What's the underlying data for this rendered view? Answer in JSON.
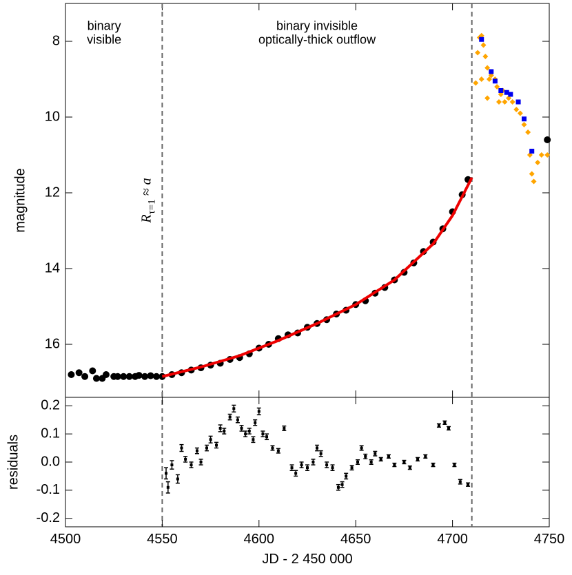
{
  "chart_data": [
    {
      "type": "scatter",
      "y_label": "magnitude",
      "annotations": [
        {
          "x": 4520,
          "y": 7.7,
          "lines": [
            "binary",
            "visible"
          ]
        },
        {
          "x": 4630,
          "y": 7.7,
          "lines": [
            "binary invisible",
            "optically-thick outflow"
          ]
        }
      ],
      "rotated_annotation": {
        "x": 4544,
        "y": 12.2,
        "main": "R",
        "sub": "τ=1",
        "rest": " ≈ a"
      },
      "vlines": [
        4550,
        4710
      ],
      "xlim": [
        4500,
        4750
      ],
      "xticks": [
        4500,
        4550,
        4600,
        4650,
        4700,
        4750
      ],
      "ylim": [
        17.4,
        7
      ],
      "yticks": [
        8,
        10,
        12,
        14,
        16
      ],
      "series": [
        {
          "marker": "circle",
          "color": "#000000",
          "x": [
            4503,
            4507,
            4510,
            4514,
            4516,
            4519,
            4521,
            4525,
            4527,
            4530,
            4533,
            4536,
            4538,
            4541,
            4544,
            4547,
            4550,
            4555,
            4560,
            4565,
            4570,
            4575,
            4580,
            4585,
            4590,
            4595,
            4600,
            4605,
            4610,
            4615,
            4620,
            4625,
            4630,
            4635,
            4640,
            4645,
            4650,
            4655,
            4660,
            4665,
            4670,
            4675,
            4680,
            4685,
            4690,
            4695,
            4700,
            4705,
            4708,
            4749
          ],
          "values": [
            16.8,
            16.75,
            16.85,
            16.7,
            16.9,
            16.9,
            16.8,
            16.85,
            16.85,
            16.85,
            16.85,
            16.85,
            16.82,
            16.85,
            16.83,
            16.85,
            16.85,
            16.8,
            16.75,
            16.68,
            16.62,
            16.55,
            16.5,
            16.4,
            16.35,
            16.25,
            16.1,
            16.0,
            15.85,
            15.75,
            15.7,
            15.55,
            15.45,
            15.35,
            15.2,
            15.1,
            14.95,
            14.85,
            14.65,
            14.5,
            14.3,
            14.1,
            13.85,
            13.55,
            13.3,
            12.95,
            12.5,
            12.05,
            11.65,
            10.6
          ]
        },
        {
          "marker": "line",
          "color": "#ee0000",
          "x": [
            4550,
            4570,
            4590,
            4610,
            4630,
            4650,
            4670,
            4690,
            4700,
            4710
          ],
          "values": [
            16.85,
            16.6,
            16.3,
            15.9,
            15.45,
            14.95,
            14.3,
            13.35,
            12.6,
            11.6
          ]
        },
        {
          "marker": "diamond",
          "color": "#ffa500",
          "x": [
            4712,
            4713,
            4714,
            4715,
            4715,
            4716,
            4717,
            4718,
            4718,
            4719,
            4720,
            4722,
            4723,
            4724,
            4725,
            4726,
            4727,
            4729,
            4731,
            4733,
            4735,
            4737,
            4739,
            4740,
            4741,
            4742,
            4744,
            4746,
            4749
          ],
          "values": [
            9.1,
            8.3,
            7.9,
            7.85,
            9.0,
            8.1,
            8.4,
            8.7,
            9.5,
            9.0,
            8.9,
            9.0,
            9.2,
            9.6,
            9.4,
            9.3,
            9.6,
            9.5,
            9.6,
            9.8,
            9.9,
            10.2,
            10.4,
            11.0,
            11.5,
            11.7,
            11.2,
            11.0,
            11.0
          ]
        },
        {
          "marker": "square",
          "color": "#0000ee",
          "x": [
            4715,
            4720,
            4722,
            4725,
            4728,
            4730,
            4734,
            4737,
            4741
          ],
          "values": [
            7.95,
            8.8,
            9.05,
            9.3,
            9.35,
            9.4,
            9.6,
            10.05,
            10.9
          ]
        }
      ]
    },
    {
      "type": "errorbar",
      "x_label": "JD - 2 450 000",
      "y_label": "residuals",
      "xlim": [
        4500,
        4750
      ],
      "xticks": [
        4500,
        4550,
        4600,
        4650,
        4700,
        4750
      ],
      "ylim": [
        -0.23,
        0.23
      ],
      "yticks": [
        -0.2,
        -0.1,
        {
          "value": 0,
          "label": "0.0"
        },
        0.1,
        0.2
      ],
      "color": "#000000",
      "x": [
        4552,
        4553,
        4555,
        4558,
        4560,
        4562,
        4565,
        4568,
        4570,
        4573,
        4575,
        4578,
        4580,
        4582,
        4585,
        4587,
        4589,
        4591,
        4593,
        4595,
        4597,
        4598,
        4600,
        4602,
        4604,
        4607,
        4610,
        4613,
        4617,
        4619,
        4622,
        4625,
        4628,
        4630,
        4632,
        4635,
        4638,
        4641,
        4643,
        4645,
        4648,
        4651,
        4653,
        4655,
        4658,
        4660,
        4663,
        4667,
        4670,
        4675,
        4678,
        4682,
        4686,
        4690,
        4693,
        4696,
        4698,
        4701,
        4704,
        4708
      ],
      "values": [
        -0.04,
        -0.09,
        -0.01,
        -0.06,
        0.05,
        0.01,
        -0.01,
        0.04,
        0.0,
        0.05,
        0.08,
        0.06,
        0.12,
        0.11,
        0.16,
        0.19,
        0.15,
        0.12,
        0.1,
        0.11,
        0.08,
        0.14,
        0.18,
        0.1,
        0.09,
        0.05,
        0.04,
        0.12,
        -0.02,
        -0.04,
        -0.01,
        -0.02,
        0.0,
        0.05,
        0.03,
        -0.01,
        -0.02,
        -0.09,
        -0.08,
        -0.05,
        -0.02,
        0.0,
        0.05,
        0.02,
        0.0,
        0.03,
        0.01,
        0.02,
        -0.01,
        0.0,
        -0.02,
        0.01,
        0.02,
        -0.01,
        0.13,
        0.14,
        0.12,
        -0.01,
        -0.07,
        -0.08
      ],
      "errors": [
        0.02,
        0.02,
        0.015,
        0.015,
        0.012,
        0.01,
        0.01,
        0.01,
        0.01,
        0.01,
        0.012,
        0.01,
        0.012,
        0.01,
        0.01,
        0.012,
        0.01,
        0.01,
        0.01,
        0.01,
        0.01,
        0.01,
        0.012,
        0.01,
        0.01,
        0.008,
        0.008,
        0.008,
        0.01,
        0.01,
        0.01,
        0.01,
        0.01,
        0.01,
        0.01,
        0.01,
        0.01,
        0.01,
        0.01,
        0.01,
        0.008,
        0.008,
        0.008,
        0.008,
        0.008,
        0.008,
        0.006,
        0.006,
        0.006,
        0.006,
        0.006,
        0.006,
        0.006,
        0.006,
        0.006,
        0.006,
        0.006,
        0.006,
        0.008,
        0.006
      ]
    }
  ]
}
